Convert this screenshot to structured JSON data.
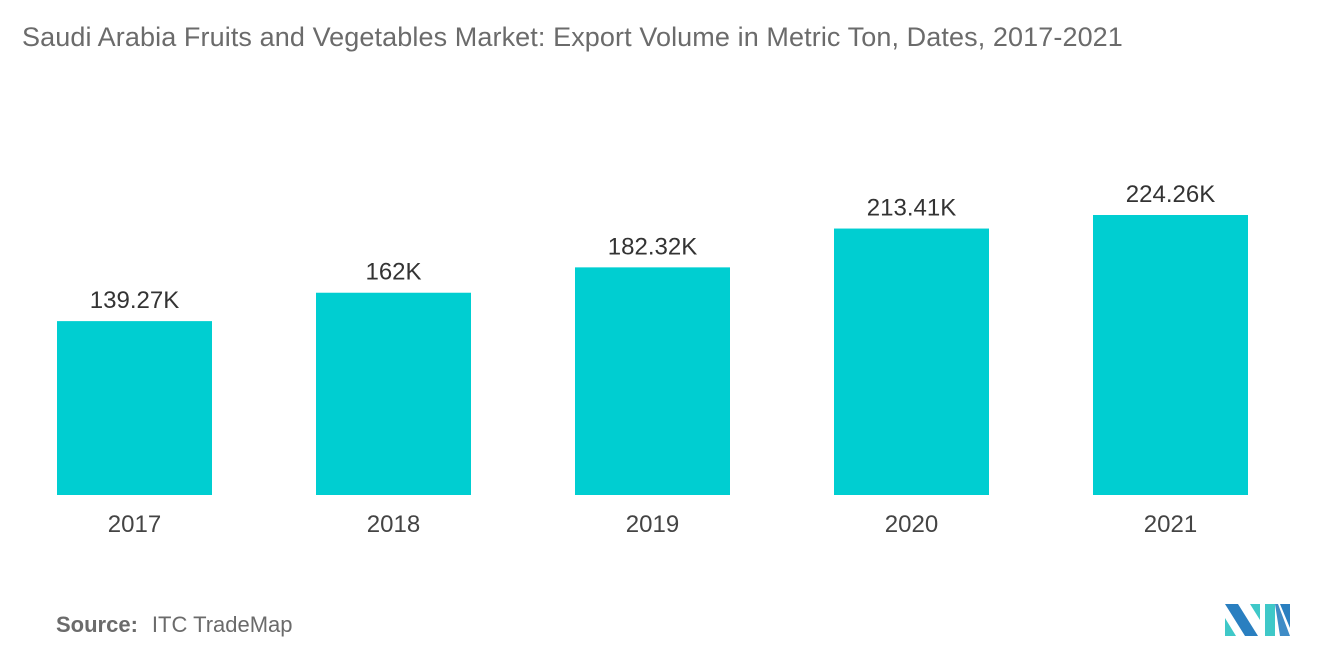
{
  "title": "Saudi Arabia Fruits and Vegetables Market: Export Volume in Metric Ton, Dates, 2017-2021",
  "source": {
    "label": "Source:",
    "value": "ITC TradeMap"
  },
  "logo": {
    "text": "MI",
    "colors": [
      "#2a7fc0",
      "#3fc8c8"
    ]
  },
  "chart_data": {
    "type": "bar",
    "title": "Saudi Arabia Fruits and Vegetables Market: Export Volume in Metric Ton, Dates, 2017-2021",
    "categories": [
      "2017",
      "2018",
      "2019",
      "2020",
      "2021"
    ],
    "values": [
      139.27,
      162,
      182.32,
      213.41,
      224.26
    ],
    "data_labels": [
      "139.27K",
      "162K",
      "182.32K",
      "213.41K",
      "224.26K"
    ],
    "unit": "K metric tons",
    "xlabel": "",
    "ylabel": "",
    "ylim": [
      0,
      224.26
    ],
    "grid": false,
    "legend": "none",
    "color": "#00ced1"
  }
}
